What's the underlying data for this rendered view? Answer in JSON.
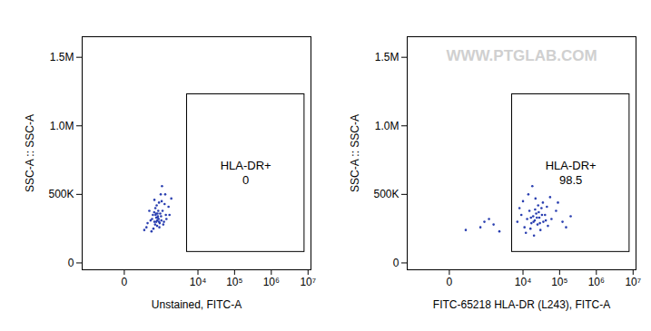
{
  "chart_data": [
    {
      "type": "scatter",
      "x_label": "Unstained, FITC-A",
      "y_label": "SSC-A :: SSC-A",
      "log": "x",
      "xlim": [
        -1300,
        12000000
      ],
      "ylim": [
        -50000,
        1650000
      ],
      "xticks": [
        0,
        {
          "value": 10000,
          "label": "10⁴"
        },
        {
          "value": 100000,
          "label": "10⁵"
        },
        {
          "value": 1000000,
          "label": "10⁶"
        },
        {
          "value": 10000000,
          "label": "10⁷"
        }
      ],
      "yticks": [
        0,
        {
          "value": 500000,
          "label": "500K"
        },
        {
          "value": 1000000,
          "label": "1.0M"
        },
        {
          "value": 1500000,
          "label": "1.5M"
        }
      ],
      "gate": {
        "label": "HLA-DR+",
        "percent": 0,
        "x": [
          5000,
          8000000
        ],
        "y": [
          80000,
          1230000
        ]
      },
      "series": [
        {
          "color": "#2a3fb0",
          "x": [
            300,
            420,
            500,
            560,
            640,
            700,
            760,
            820,
            900,
            1000,
            1100,
            1250,
            1500,
            1800,
            600,
            520,
            450,
            680,
            780,
            880,
            960,
            1150,
            380,
            330,
            250,
            560,
            640,
            720,
            690,
            610,
            740,
            850,
            920,
            1050,
            1300,
            1600,
            470,
            590,
            660,
            800,
            940,
            1200,
            550,
            710,
            630,
            780
          ],
          "values": [
            260000,
            310000,
            350000,
            300000,
            330000,
            360000,
            320000,
            290000,
            340000,
            380000,
            300000,
            350000,
            410000,
            470000,
            400000,
            250000,
            230000,
            270000,
            440000,
            500000,
            560000,
            430000,
            380000,
            290000,
            240000,
            460000,
            300000,
            340000,
            310000,
            350000,
            380000,
            360000,
            310000,
            280000,
            320000,
            350000,
            320000,
            280000,
            420000,
            260000,
            450000,
            500000,
            370000,
            330000,
            360000,
            300000
          ]
        }
      ]
    },
    {
      "type": "scatter",
      "x_label": "FITC-65218 HLA-DR (L243), FITC-A",
      "y_label": "SSC-A :: SSC-A",
      "watermark": "WWW.PTGLAB.COM",
      "log": "x",
      "xlim": [
        -1300,
        12000000
      ],
      "ylim": [
        -50000,
        1650000
      ],
      "xticks": [
        0,
        {
          "value": 10000,
          "label": "10⁴"
        },
        {
          "value": 100000,
          "label": "10⁵"
        },
        {
          "value": 1000000,
          "label": "10⁶"
        },
        {
          "value": 10000000,
          "label": "10⁷"
        }
      ],
      "yticks": [
        0,
        {
          "value": 500000,
          "label": "500K"
        },
        {
          "value": 1000000,
          "label": "1.0M"
        },
        {
          "value": 1500000,
          "label": "1.5M"
        }
      ],
      "gate": {
        "label": "HLA-DR+",
        "percent": 98.5,
        "x": [
          5000,
          8000000
        ],
        "y": [
          80000,
          1230000
        ]
      },
      "series": [
        {
          "color": "#2a3fb0",
          "x": [
            7000,
            9000,
            11000,
            13000,
            15000,
            17000,
            19000,
            21000,
            23000,
            25000,
            28000,
            32000,
            36000,
            40000,
            48000,
            60000,
            80000,
            120000,
            200000,
            10000,
            14000,
            18000,
            22000,
            26000,
            30000,
            12000,
            16000,
            20000,
            35000,
            45000,
            55000,
            8000,
            24000,
            27000,
            19500,
            16500,
            21500,
            29000,
            33000,
            42000,
            150000,
            90000,
            180,
            600,
            800,
            1500,
            2200,
            1100
          ],
          "values": [
            300000,
            350000,
            260000,
            320000,
            380000,
            290000,
            340000,
            310000,
            360000,
            280000,
            330000,
            400000,
            300000,
            350000,
            270000,
            320000,
            380000,
            300000,
            340000,
            450000,
            500000,
            560000,
            470000,
            420000,
            240000,
            220000,
            250000,
            200000,
            440000,
            410000,
            480000,
            400000,
            330000,
            370000,
            300000,
            330000,
            390000,
            290000,
            350000,
            310000,
            260000,
            440000,
            240000,
            260000,
            300000,
            280000,
            230000,
            320000
          ]
        }
      ]
    }
  ]
}
